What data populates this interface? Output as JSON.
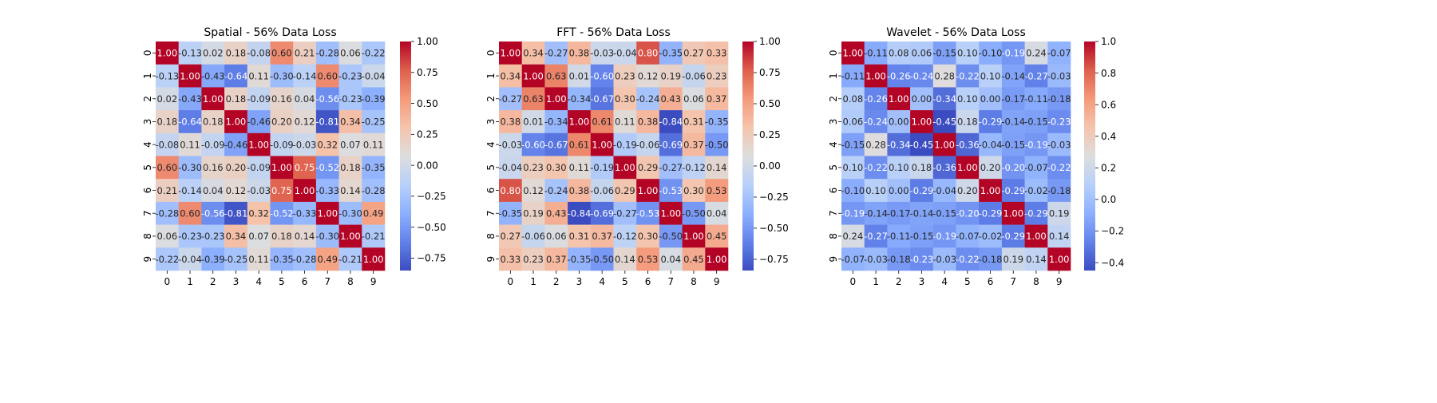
{
  "chart_data": [
    {
      "type": "heatmap",
      "title": "Spatial - 56% Data Loss",
      "x_labels": [
        "0",
        "1",
        "2",
        "3",
        "4",
        "5",
        "6",
        "7",
        "8",
        "9"
      ],
      "y_labels": [
        "0",
        "1",
        "2",
        "3",
        "4",
        "5",
        "6",
        "7",
        "8",
        "9"
      ],
      "vmin": -0.85,
      "vmax": 1.0,
      "colorbar_ticks": [
        -0.75,
        -0.5,
        -0.25,
        0.0,
        0.25,
        0.5,
        0.75,
        1.0
      ],
      "colorbar_tick_labels": [
        "−0.75",
        "−0.50",
        "−0.25",
        "0.00",
        "0.25",
        "0.50",
        "0.75",
        "1.00"
      ],
      "values": [
        [
          1.0,
          -0.13,
          0.02,
          0.18,
          -0.08,
          0.6,
          0.21,
          -0.28,
          0.06,
          -0.22
        ],
        [
          -0.13,
          1.0,
          -0.43,
          -0.64,
          0.11,
          -0.3,
          -0.14,
          0.6,
          -0.23,
          -0.04
        ],
        [
          0.02,
          -0.43,
          1.0,
          0.18,
          -0.09,
          0.16,
          0.04,
          -0.56,
          -0.23,
          -0.39
        ],
        [
          0.18,
          -0.64,
          0.18,
          1.0,
          -0.46,
          0.2,
          0.12,
          -0.81,
          0.34,
          -0.25
        ],
        [
          -0.08,
          0.11,
          -0.09,
          -0.46,
          1.0,
          -0.09,
          -0.03,
          0.32,
          0.07,
          0.11
        ],
        [
          0.6,
          -0.3,
          0.16,
          0.2,
          -0.09,
          1.0,
          0.75,
          -0.52,
          0.18,
          -0.35
        ],
        [
          0.21,
          -0.14,
          0.04,
          0.12,
          -0.03,
          0.75,
          1.0,
          -0.33,
          0.14,
          -0.28
        ],
        [
          -0.28,
          0.6,
          -0.56,
          -0.81,
          0.32,
          -0.52,
          -0.33,
          1.0,
          -0.3,
          0.49
        ],
        [
          0.06,
          -0.23,
          -0.23,
          0.34,
          0.07,
          0.18,
          0.14,
          -0.3,
          1.0,
          -0.21
        ],
        [
          -0.22,
          -0.04,
          -0.39,
          -0.25,
          0.11,
          -0.35,
          -0.28,
          0.49,
          -0.21,
          1.0
        ]
      ]
    },
    {
      "type": "heatmap",
      "title": "FFT - 56% Data Loss",
      "x_labels": [
        "0",
        "1",
        "2",
        "3",
        "4",
        "5",
        "6",
        "7",
        "8",
        "9"
      ],
      "y_labels": [
        "0",
        "1",
        "2",
        "3",
        "4",
        "5",
        "6",
        "7",
        "8",
        "9"
      ],
      "vmin": -0.84,
      "vmax": 1.0,
      "colorbar_ticks": [
        -0.75,
        -0.5,
        -0.25,
        0.0,
        0.25,
        0.5,
        0.75,
        1.0
      ],
      "colorbar_tick_labels": [
        "−0.75",
        "−0.50",
        "−0.25",
        "0.00",
        "0.25",
        "0.50",
        "0.75",
        "1.00"
      ],
      "values": [
        [
          1.0,
          0.34,
          -0.27,
          0.38,
          -0.03,
          -0.04,
          0.8,
          -0.35,
          0.27,
          0.33
        ],
        [
          0.34,
          1.0,
          0.63,
          0.01,
          -0.6,
          0.23,
          0.12,
          0.19,
          -0.06,
          0.23
        ],
        [
          -0.27,
          0.63,
          1.0,
          -0.34,
          -0.67,
          0.3,
          -0.24,
          0.43,
          0.06,
          0.37
        ],
        [
          0.38,
          0.01,
          -0.34,
          1.0,
          0.61,
          0.11,
          0.38,
          -0.84,
          0.31,
          -0.35
        ],
        [
          -0.03,
          -0.6,
          -0.67,
          0.61,
          1.0,
          -0.19,
          -0.06,
          -0.69,
          0.37,
          -0.5
        ],
        [
          -0.04,
          0.23,
          0.3,
          0.11,
          -0.19,
          1.0,
          0.29,
          -0.27,
          -0.12,
          0.14
        ],
        [
          0.8,
          0.12,
          -0.24,
          0.38,
          -0.06,
          0.29,
          1.0,
          -0.53,
          0.3,
          0.53
        ],
        [
          -0.35,
          0.19,
          0.43,
          -0.84,
          -0.69,
          -0.27,
          -0.53,
          1.0,
          -0.5,
          0.04
        ],
        [
          0.27,
          -0.06,
          0.06,
          0.31,
          0.37,
          -0.12,
          0.3,
          -0.5,
          1.0,
          0.45
        ],
        [
          0.33,
          0.23,
          0.37,
          -0.35,
          -0.5,
          0.14,
          0.53,
          0.04,
          0.45,
          1.0
        ]
      ]
    },
    {
      "type": "heatmap",
      "title": "Wavelet - 56% Data Loss",
      "x_labels": [
        "0",
        "1",
        "2",
        "3",
        "4",
        "5",
        "6",
        "7",
        "8",
        "9"
      ],
      "y_labels": [
        "0",
        "1",
        "2",
        "3",
        "4",
        "5",
        "6",
        "7",
        "8",
        "9"
      ],
      "vmin": -0.45,
      "vmax": 1.0,
      "colorbar_ticks": [
        -0.4,
        -0.2,
        0.0,
        0.2,
        0.4,
        0.6,
        0.8,
        1.0
      ],
      "colorbar_tick_labels": [
        "−0.4",
        "−0.2",
        "0.0",
        "0.2",
        "0.4",
        "0.6",
        "0.8",
        "1.0"
      ],
      "values": [
        [
          1.0,
          -0.11,
          0.08,
          0.06,
          -0.15,
          0.1,
          -0.1,
          -0.19,
          0.24,
          -0.07
        ],
        [
          -0.11,
          1.0,
          -0.26,
          -0.24,
          0.28,
          -0.22,
          0.1,
          -0.14,
          -0.27,
          -0.03
        ],
        [
          0.08,
          -0.26,
          1.0,
          0.0,
          -0.34,
          0.1,
          0.0,
          -0.17,
          -0.11,
          -0.18
        ],
        [
          0.06,
          -0.24,
          0.0,
          1.0,
          -0.45,
          0.18,
          -0.29,
          -0.14,
          -0.15,
          -0.23
        ],
        [
          -0.15,
          0.28,
          -0.34,
          -0.45,
          1.0,
          -0.36,
          -0.04,
          -0.15,
          -0.19,
          -0.03
        ],
        [
          0.1,
          -0.22,
          0.1,
          0.18,
          -0.36,
          1.0,
          0.2,
          -0.2,
          -0.07,
          -0.22
        ],
        [
          -0.1,
          0.1,
          0.0,
          -0.29,
          -0.04,
          0.2,
          1.0,
          -0.29,
          -0.02,
          -0.18
        ],
        [
          -0.19,
          -0.14,
          -0.17,
          -0.14,
          -0.15,
          -0.2,
          -0.29,
          1.0,
          -0.29,
          0.19
        ],
        [
          0.24,
          -0.27,
          -0.11,
          -0.15,
          -0.19,
          -0.07,
          -0.02,
          -0.29,
          1.0,
          0.14
        ],
        [
          -0.07,
          -0.03,
          -0.18,
          -0.23,
          -0.03,
          -0.22,
          -0.18,
          0.19,
          0.14,
          1.0
        ]
      ]
    }
  ]
}
